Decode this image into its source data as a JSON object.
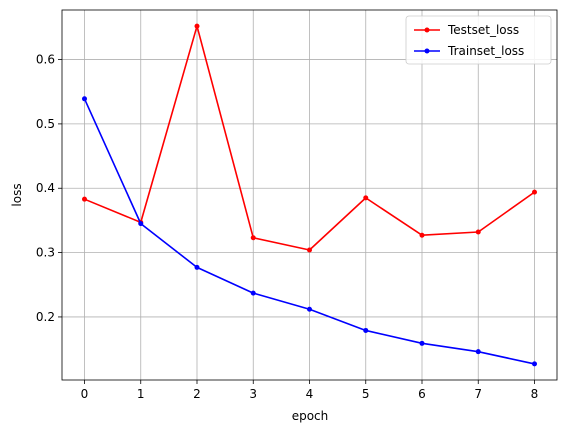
{
  "chart_data": {
    "type": "line",
    "title": "",
    "xlabel": "epoch",
    "ylabel": "loss",
    "x": [
      0,
      1,
      2,
      3,
      4,
      5,
      6,
      7,
      8
    ],
    "xticks": [
      0,
      1,
      2,
      3,
      4,
      5,
      6,
      7,
      8
    ],
    "yticks": [
      0.2,
      0.3,
      0.4,
      0.5,
      0.6
    ],
    "xlim": [
      -0.4,
      8.4
    ],
    "ylim": [
      0.102,
      0.677
    ],
    "grid": true,
    "legend_position": "top-right",
    "series": [
      {
        "name": "Testset_loss",
        "color": "#ff0000",
        "marker": "dot",
        "values": [
          0.383,
          0.347,
          0.652,
          0.323,
          0.304,
          0.385,
          0.327,
          0.332,
          0.394
        ]
      },
      {
        "name": "Trainset_loss",
        "color": "#0000ff",
        "marker": "dot",
        "values": [
          0.539,
          0.345,
          0.277,
          0.237,
          0.212,
          0.179,
          0.159,
          0.146,
          0.127
        ]
      }
    ]
  }
}
